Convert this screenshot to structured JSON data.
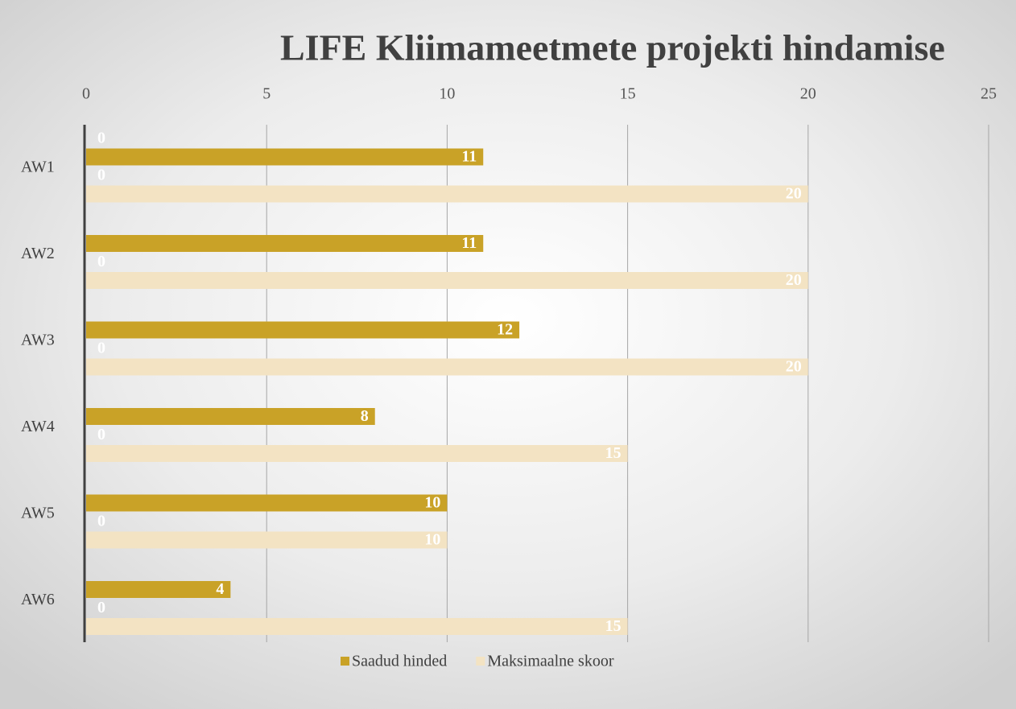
{
  "chart_data": {
    "type": "bar",
    "orientation": "horizontal",
    "title": "LIFE Kliimameetmete projekti hindamise",
    "categories": [
      "AW1",
      "AW2",
      "AW3",
      "AW4",
      "AW5",
      "AW6"
    ],
    "series": [
      {
        "color": "#f3e3c3",
        "values": [
          0,
          null,
          null,
          null,
          null,
          null
        ]
      },
      {
        "name": "Saadud hinded",
        "color": "#c9a227",
        "values": [
          11,
          11,
          12,
          8,
          10,
          4
        ]
      },
      {
        "color": "#f3e3c3",
        "values": [
          0,
          0,
          0,
          0,
          0,
          0
        ]
      },
      {
        "name": "Maksimaalne skoor",
        "color": "#f3e3c3",
        "values": [
          20,
          20,
          20,
          15,
          10,
          15
        ]
      }
    ],
    "xlim": [
      0,
      25
    ],
    "xticks": [
      0,
      5,
      10,
      15,
      20,
      25
    ],
    "grid": true,
    "legend": "bottom"
  }
}
